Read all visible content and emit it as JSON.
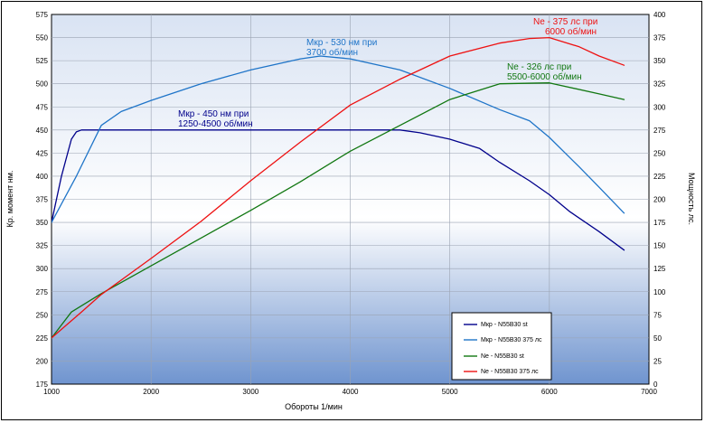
{
  "chart_data": {
    "type": "line",
    "xlabel": "Обороты 1/мин",
    "ylabel_left": "Кр. момент нм.",
    "ylabel_right": "Мощность лс.",
    "xlim": [
      1000,
      7000
    ],
    "ylim_left": [
      175,
      575
    ],
    "ylim_right": [
      0,
      400
    ],
    "x_ticks": [
      "1000",
      "2000",
      "3000",
      "4000",
      "5000",
      "6000",
      "7000"
    ],
    "y_left_ticks": [
      "175",
      "200",
      "225",
      "250",
      "275",
      "300",
      "325",
      "350",
      "375",
      "400",
      "425",
      "450",
      "475",
      "500",
      "525",
      "550",
      "575"
    ],
    "y_right_ticks": [
      "0",
      "25",
      "50",
      "75",
      "100",
      "125",
      "150",
      "175",
      "200",
      "225",
      "250",
      "275",
      "300",
      "325",
      "350",
      "375",
      "400"
    ],
    "grid": true,
    "legend_position": "bottom-right",
    "series": [
      {
        "name": "Мкр - N55B30 st",
        "axis": "left",
        "color": "#00008b",
        "x": [
          1000,
          1100,
          1200,
          1250,
          1300,
          1500,
          2000,
          2500,
          3000,
          3500,
          4000,
          4500,
          4700,
          5000,
          5300,
          5500,
          5800,
          6000,
          6200,
          6500,
          6750
        ],
        "y": [
          350,
          400,
          440,
          448,
          450,
          450,
          450,
          450,
          450,
          450,
          450,
          450,
          447,
          440,
          430,
          415,
          395,
          380,
          362,
          340,
          320
        ]
      },
      {
        "name": "Мкр - N55B30 375 лс",
        "axis": "left",
        "color": "#1e74c8",
        "x": [
          1000,
          1250,
          1500,
          1700,
          2000,
          2500,
          3000,
          3500,
          3700,
          4000,
          4500,
          5000,
          5500,
          5800,
          6000,
          6300,
          6500,
          6750
        ],
        "y": [
          350,
          400,
          455,
          470,
          482,
          500,
          515,
          527,
          530,
          527,
          515,
          495,
          472,
          460,
          442,
          410,
          388,
          360
        ]
      },
      {
        "name": "Ne  -  N55B30 st",
        "axis": "right",
        "color": "#117711",
        "x": [
          1000,
          1200,
          1500,
          2000,
          2500,
          3000,
          3500,
          4000,
          4500,
          5000,
          5500,
          6000,
          6500,
          6750
        ],
        "y": [
          50,
          78,
          98,
          128,
          158,
          188,
          219,
          252,
          280,
          308,
          325,
          326,
          314,
          308
        ]
      },
      {
        "name": "Ne - N55B30 375 лс",
        "axis": "right",
        "color": "#ee1111",
        "x": [
          1000,
          1300,
          1500,
          2000,
          2500,
          3000,
          3500,
          4000,
          4500,
          5000,
          5500,
          5800,
          6000,
          6300,
          6500,
          6750
        ],
        "y": [
          50,
          78,
          97,
          136,
          176,
          220,
          262,
          302,
          330,
          355,
          369,
          374,
          375,
          365,
          355,
          345
        ]
      }
    ],
    "annotations": [
      {
        "lines": [
          "Ne - 375 лс при",
          "6000 об/мин"
        ],
        "color": "#ee1111"
      },
      {
        "lines": [
          "Мкр - 530 нм при",
          "3700 об/мин"
        ],
        "color": "#1e74c8"
      },
      {
        "lines": [
          "Ne - 326 лс при",
          "5500-6000 об/мин"
        ],
        "color": "#117711"
      },
      {
        "lines": [
          "Мкр - 450 нм при",
          "1250-4500 об/мин"
        ],
        "color": "#00008b"
      }
    ]
  }
}
